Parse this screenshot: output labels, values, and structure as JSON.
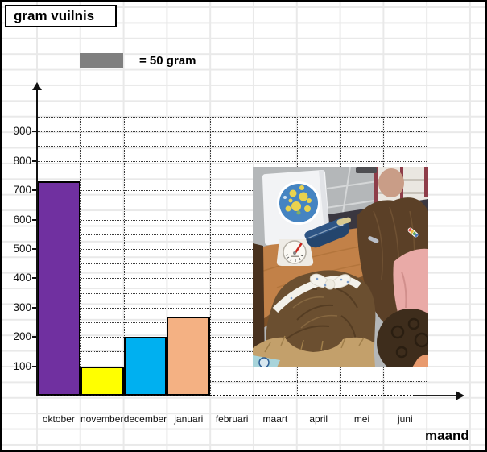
{
  "title": "gram vuilnis",
  "legend": {
    "swatch_color": "#7f7f7f",
    "label": "= 50 gram"
  },
  "axes": {
    "x_label": "maand",
    "y_label": "gram vuilnis"
  },
  "chart_data": {
    "type": "bar",
    "title": "gram vuilnis",
    "xlabel": "maand",
    "ylabel": "gram vuilnis",
    "unit": "gram",
    "block_value_gram": 50,
    "legend_note": "= 50 gram",
    "categories": [
      "oktober",
      "november",
      "december",
      "januari",
      "februari",
      "maart",
      "april",
      "mei",
      "juni"
    ],
    "values": [
      730,
      100,
      200,
      270,
      null,
      null,
      null,
      null,
      null
    ],
    "bar_colors": [
      "#7030a0",
      "#ffff00",
      "#00b0f0",
      "#f4b183"
    ],
    "ylim": [
      0,
      950
    ],
    "yticks": [
      100,
      200,
      300,
      400,
      500,
      600,
      700,
      800,
      900
    ],
    "gridline_interval": 50,
    "grid": true,
    "legend_position": "top-left"
  },
  "photo": {
    "alt": "Children with curly hair and a white bow headband leaning over a wooden table, weighing garbage on a white analog kitchen scale with a blue round sticker board; blue pencil case on the table, grey tiled floor behind"
  }
}
